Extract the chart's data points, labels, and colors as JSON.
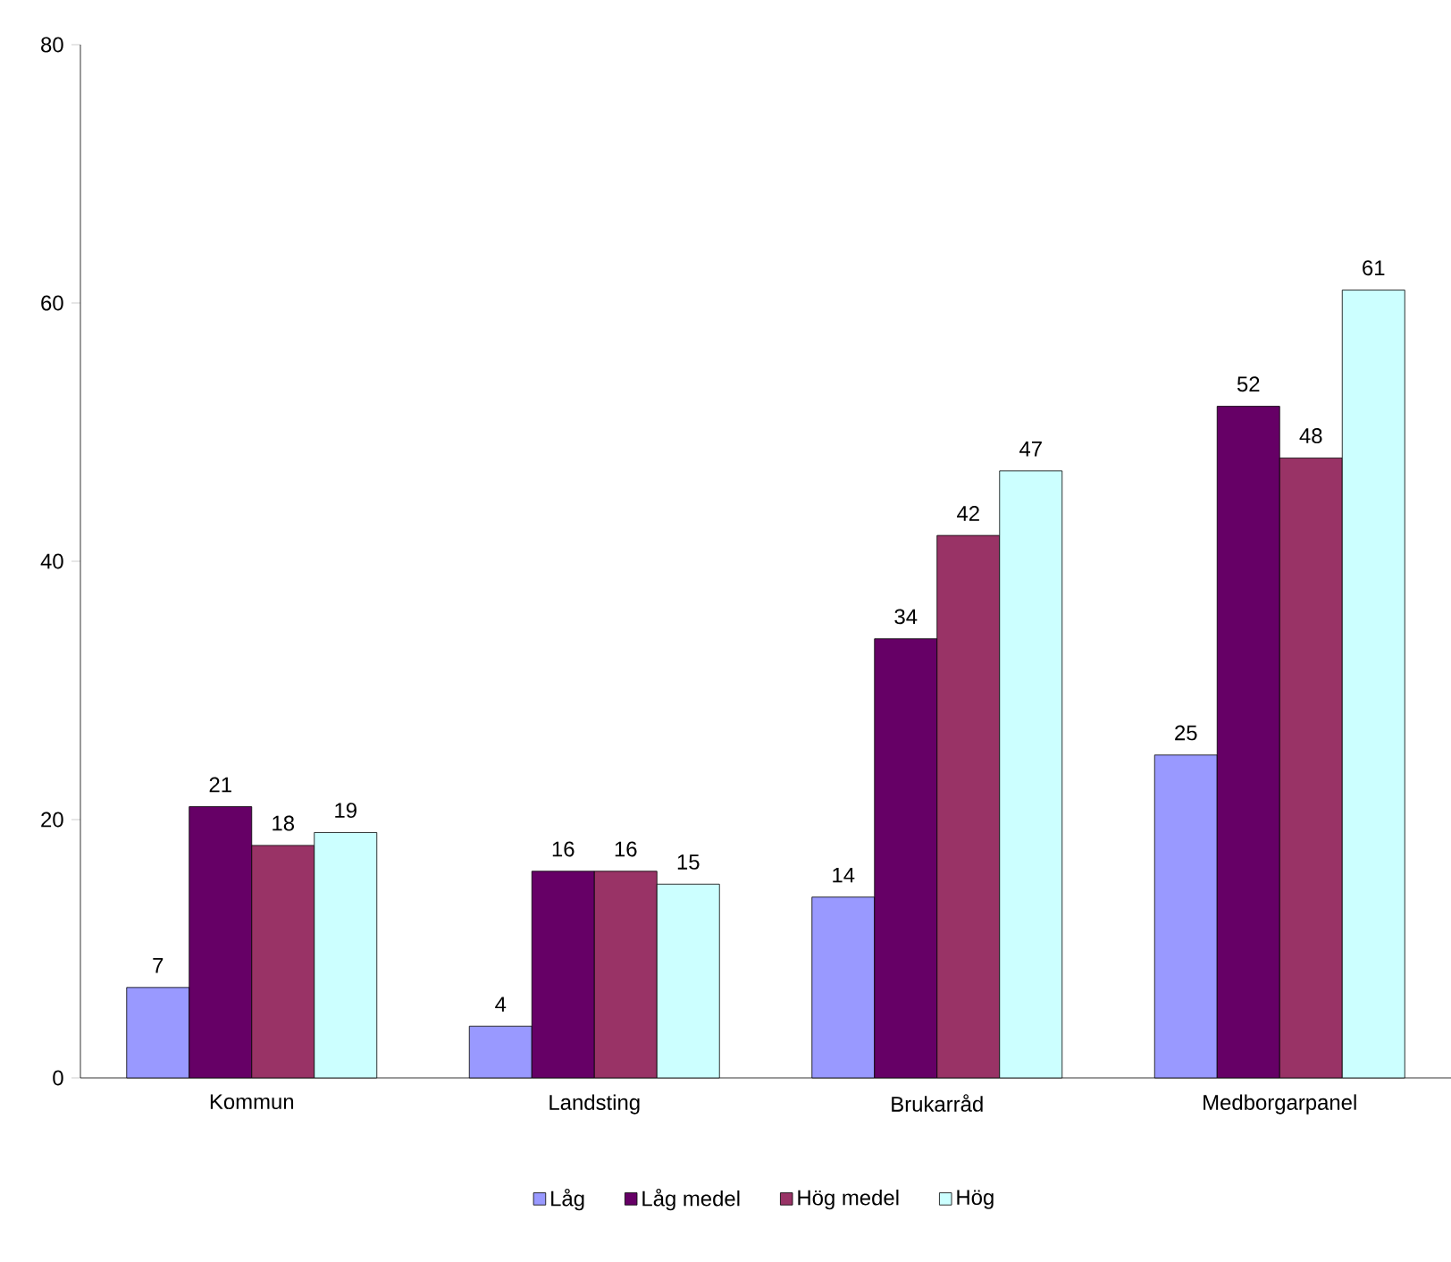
{
  "chart_data": {
    "type": "bar",
    "categories": [
      "Kommun",
      "Landsting",
      "Brukarråd",
      "Medborgarpanel"
    ],
    "series": [
      {
        "name": "Låg",
        "color": "#9999ff",
        "values": [
          7,
          4,
          14,
          25
        ]
      },
      {
        "name": "Låg medel",
        "color": "#660066",
        "values": [
          21,
          16,
          34,
          52
        ]
      },
      {
        "name": "Hög medel",
        "color": "#993366",
        "values": [
          18,
          16,
          42,
          48
        ]
      },
      {
        "name": "Hög",
        "color": "#ccffff",
        "values": [
          19,
          15,
          47,
          61
        ]
      }
    ],
    "ylim": [
      0,
      80
    ],
    "yticks": [
      0,
      20,
      40,
      60,
      80
    ],
    "data_labels": true,
    "legend": "bottom"
  }
}
